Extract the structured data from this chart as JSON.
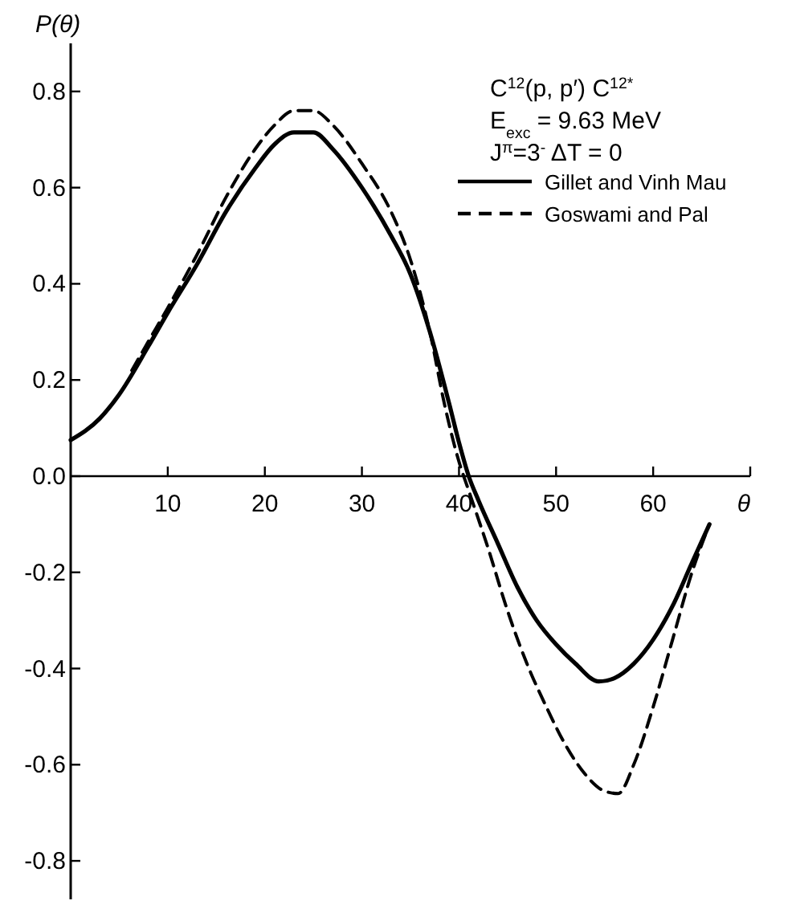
{
  "chart_data": {
    "type": "line",
    "xlabel": "θ",
    "ylabel": "P(θ)",
    "xlim": [
      0,
      70
    ],
    "ylim": [
      -0.88,
      0.9
    ],
    "xticks": [
      10,
      20,
      30,
      40,
      50,
      60,
      {
        "value": 70,
        "label": null
      }
    ],
    "yticks": [
      {
        "value": -0.8,
        "label": "-0.8"
      },
      {
        "value": -0.6,
        "label": "-0.6"
      },
      {
        "value": -0.4,
        "label": "-0.4"
      },
      {
        "value": -0.2,
        "label": "-0.2"
      },
      {
        "value": 0,
        "label": "0.0"
      },
      {
        "value": 0.2,
        "label": "0.2"
      },
      {
        "value": 0.4,
        "label": "0.4"
      },
      {
        "value": 0.6,
        "label": "0.6"
      },
      {
        "value": 0.8,
        "label": "0.8"
      }
    ],
    "annotations": [
      "C$^{12}$(p, p′) C$^{12*}$",
      "E$_{exc}$ = 9.63 MeV",
      "J$^{π}$=3$^{-}$  ΔT = 0"
    ],
    "legend": "top right",
    "grid": false,
    "series": [
      {
        "name": "Gillet and Vinh Mau",
        "color": "#000000",
        "line_style": "solid",
        "x": [
          0,
          3,
          5,
          8,
          10,
          13,
          16,
          19,
          21,
          23,
          25,
          27,
          30,
          33,
          35,
          37,
          39,
          40,
          41,
          42,
          44,
          46,
          48,
          50,
          52,
          54.4,
          56,
          58,
          60,
          62,
          64,
          65.8
        ],
        "values": [
          0.075,
          0.12,
          0.17,
          0.27,
          0.34,
          0.44,
          0.55,
          0.64,
          0.69,
          0.715,
          0.715,
          0.68,
          0.6,
          0.5,
          0.42,
          0.3,
          0.15,
          0.07,
          0.0,
          -0.05,
          -0.14,
          -0.23,
          -0.3,
          -0.35,
          -0.39,
          -0.427,
          -0.42,
          -0.39,
          -0.34,
          -0.27,
          -0.18,
          -0.1
        ]
      },
      {
        "name": "Goswami and Pal",
        "color": "#000000",
        "line_style": "dashed",
        "x": [
          6.3,
          8,
          10,
          13,
          16,
          19,
          21,
          23,
          25,
          27,
          30,
          33,
          35,
          37,
          38.5,
          40,
          41,
          43,
          45,
          47,
          49,
          51,
          53,
          55,
          56.4,
          58,
          60,
          62,
          64,
          65.8
        ],
        "values": [
          0.22,
          0.28,
          0.35,
          0.46,
          0.58,
          0.68,
          0.73,
          0.76,
          0.76,
          0.73,
          0.65,
          0.55,
          0.45,
          0.3,
          0.15,
          0.03,
          -0.03,
          -0.15,
          -0.28,
          -0.39,
          -0.48,
          -0.56,
          -0.62,
          -0.655,
          -0.66,
          -0.6,
          -0.48,
          -0.34,
          -0.2,
          -0.1
        ]
      }
    ]
  }
}
